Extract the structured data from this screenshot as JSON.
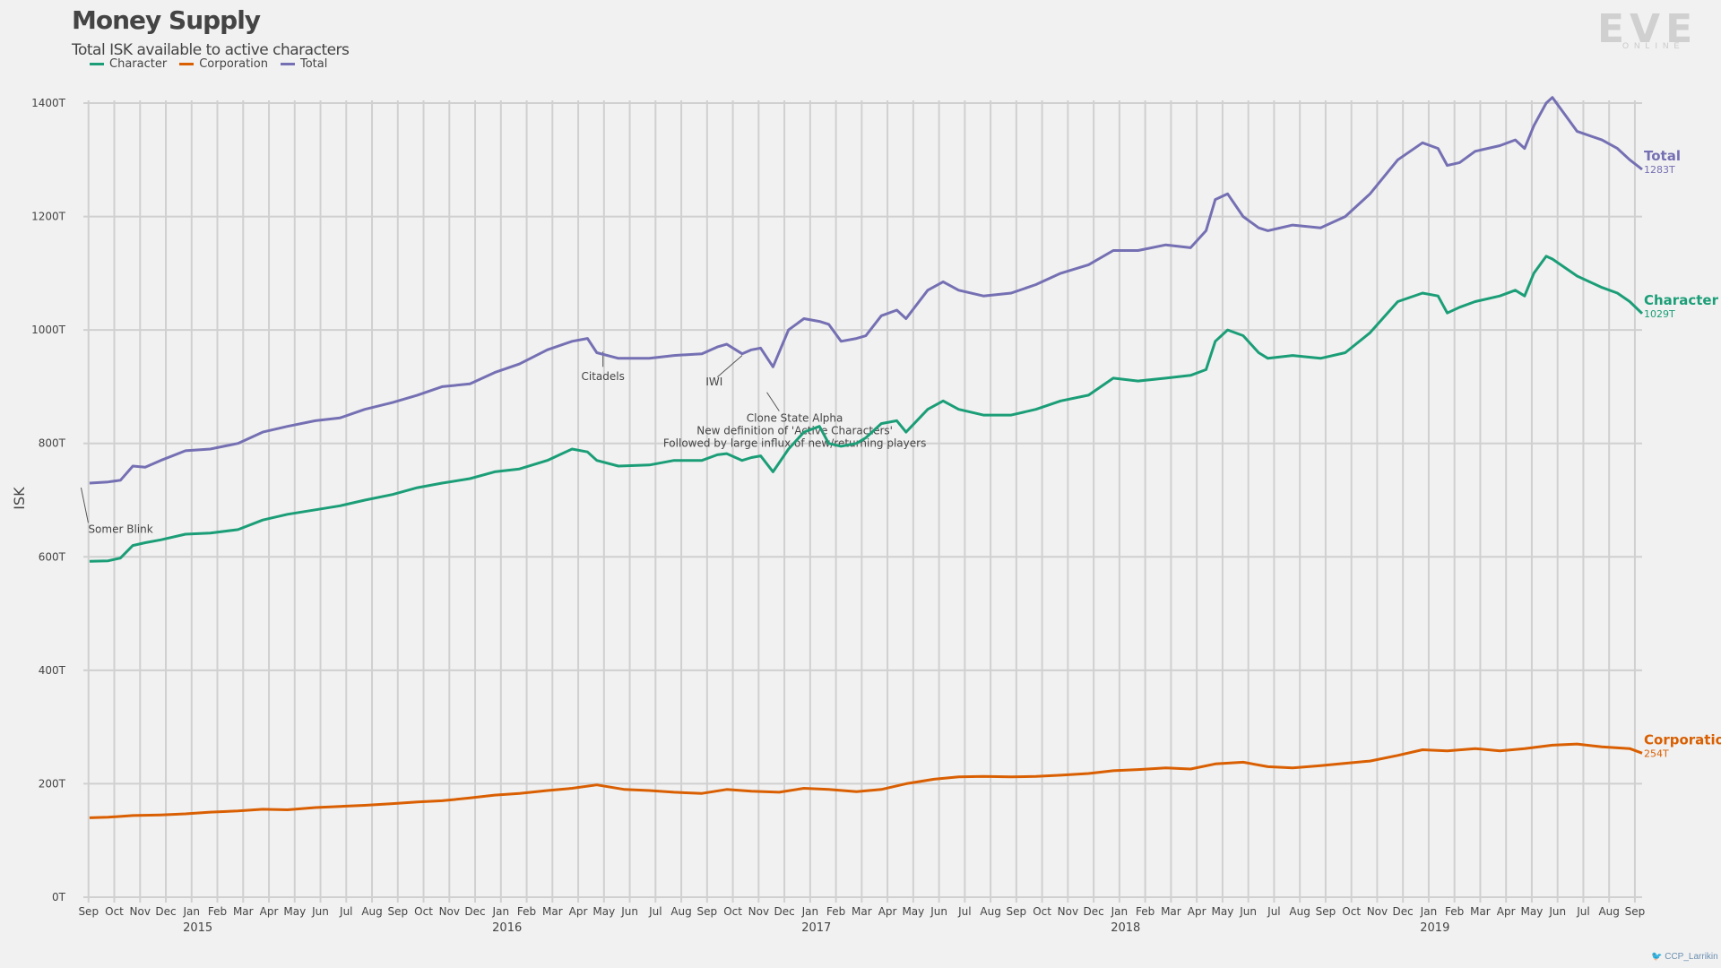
{
  "header": {
    "title": "Money Supply",
    "subtitle": "Total ISK available to active characters",
    "logo_text": "EVE",
    "logo_sub": "ONLINE",
    "credit": "CCP_Larrikin"
  },
  "colors": {
    "character": "#1b9e77",
    "corporation": "#d95f02",
    "total": "#7570b3"
  },
  "chart_data": {
    "type": "line",
    "ylabel": "ISK",
    "ylim": [
      0,
      1400
    ],
    "yticks": [
      "0T",
      "200T",
      "400T",
      "600T",
      "800T",
      "1000T",
      "1200T",
      "1400T"
    ],
    "xlim": [
      2014.67,
      2019.71
    ],
    "month_labels": [
      "Sep",
      "Oct",
      "Nov",
      "Dec",
      "Jan",
      "Feb",
      "Mar",
      "Apr",
      "May",
      "Jun",
      "Jul",
      "Aug",
      "Sep",
      "Oct",
      "Nov",
      "Dec",
      "Jan",
      "Feb",
      "Mar",
      "Apr",
      "May",
      "Jun",
      "Jul",
      "Aug",
      "Sep",
      "Oct",
      "Nov",
      "Dec",
      "Jan",
      "Feb",
      "Mar",
      "Apr",
      "May",
      "Jun",
      "Jul",
      "Aug",
      "Sep",
      "Oct",
      "Nov",
      "Dec",
      "Jan",
      "Feb",
      "Mar",
      "Apr",
      "May",
      "Jun",
      "Jul",
      "Aug",
      "Sep",
      "Oct",
      "Nov",
      "Dec",
      "Jan",
      "Feb",
      "Mar",
      "Apr",
      "May",
      "Jun",
      "Jul",
      "Aug",
      "Sep"
    ],
    "year_labels": [
      {
        "label": "2015",
        "x": 2015.0
      },
      {
        "label": "2016",
        "x": 2016.0
      },
      {
        "label": "2017",
        "x": 2017.0
      },
      {
        "label": "2018",
        "x": 2018.0
      },
      {
        "label": "2019",
        "x": 2019.0
      }
    ],
    "legend": [
      "Character",
      "Corporation",
      "Total"
    ],
    "series": [
      {
        "name": "Total",
        "color": "#7570b3",
        "end_label": "Total",
        "end_value": "1283T",
        "x": [
          2014.69,
          2014.75,
          2014.79,
          2014.83,
          2014.87,
          2014.92,
          2015.0,
          2015.08,
          2015.17,
          2015.25,
          2015.33,
          2015.42,
          2015.5,
          2015.58,
          2015.67,
          2015.75,
          2015.83,
          2015.92,
          2016.0,
          2016.08,
          2016.17,
          2016.25,
          2016.3,
          2016.33,
          2016.4,
          2016.5,
          2016.58,
          2016.67,
          2016.72,
          2016.75,
          2016.8,
          2016.83,
          2016.86,
          2016.9,
          2016.95,
          2017.0,
          2017.05,
          2017.08,
          2017.12,
          2017.17,
          2017.2,
          2017.25,
          2017.3,
          2017.33,
          2017.4,
          2017.45,
          2017.5,
          2017.58,
          2017.67,
          2017.75,
          2017.83,
          2017.92,
          2018.0,
          2018.08,
          2018.17,
          2018.25,
          2018.3,
          2018.33,
          2018.37,
          2018.42,
          2018.47,
          2018.5,
          2018.58,
          2018.67,
          2018.75,
          2018.83,
          2018.92,
          2019.0,
          2019.05,
          2019.08,
          2019.12,
          2019.17,
          2019.25,
          2019.3,
          2019.33,
          2019.36,
          2019.4,
          2019.42,
          2019.5,
          2019.58,
          2019.63,
          2019.67,
          2019.71
        ],
        "y": [
          730,
          732,
          735,
          760,
          758,
          770,
          787,
          790,
          800,
          820,
          830,
          840,
          845,
          860,
          872,
          885,
          900,
          905,
          925,
          940,
          965,
          980,
          985,
          960,
          950,
          950,
          955,
          958,
          970,
          975,
          958,
          965,
          968,
          935,
          1000,
          1020,
          1015,
          1010,
          980,
          985,
          990,
          1025,
          1035,
          1020,
          1070,
          1085,
          1070,
          1060,
          1065,
          1080,
          1100,
          1115,
          1140,
          1140,
          1150,
          1145,
          1175,
          1230,
          1240,
          1200,
          1180,
          1175,
          1185,
          1180,
          1200,
          1240,
          1300,
          1330,
          1320,
          1290,
          1295,
          1315,
          1325,
          1335,
          1320,
          1360,
          1400,
          1410,
          1350,
          1335,
          1320,
          1300,
          1283
        ]
      },
      {
        "name": "Character",
        "color": "#1b9e77",
        "end_label": "Character",
        "end_value": "1029T",
        "x": [
          2014.69,
          2014.75,
          2014.79,
          2014.83,
          2014.87,
          2014.92,
          2015.0,
          2015.08,
          2015.17,
          2015.25,
          2015.33,
          2015.42,
          2015.5,
          2015.58,
          2015.67,
          2015.75,
          2015.83,
          2015.92,
          2016.0,
          2016.08,
          2016.17,
          2016.25,
          2016.3,
          2016.33,
          2016.4,
          2016.5,
          2016.58,
          2016.67,
          2016.72,
          2016.75,
          2016.8,
          2016.83,
          2016.86,
          2016.9,
          2016.95,
          2017.0,
          2017.05,
          2017.08,
          2017.12,
          2017.17,
          2017.2,
          2017.25,
          2017.3,
          2017.33,
          2017.4,
          2017.45,
          2017.5,
          2017.58,
          2017.67,
          2017.75,
          2017.83,
          2017.92,
          2018.0,
          2018.08,
          2018.17,
          2018.25,
          2018.3,
          2018.33,
          2018.37,
          2018.42,
          2018.47,
          2018.5,
          2018.58,
          2018.67,
          2018.75,
          2018.83,
          2018.92,
          2019.0,
          2019.05,
          2019.08,
          2019.12,
          2019.17,
          2019.25,
          2019.3,
          2019.33,
          2019.36,
          2019.4,
          2019.42,
          2019.5,
          2019.58,
          2019.63,
          2019.67,
          2019.71
        ],
        "y": [
          592,
          593,
          598,
          620,
          625,
          630,
          640,
          642,
          648,
          665,
          675,
          683,
          690,
          700,
          710,
          722,
          730,
          738,
          750,
          755,
          770,
          790,
          785,
          770,
          760,
          762,
          770,
          770,
          780,
          782,
          770,
          775,
          778,
          750,
          790,
          820,
          830,
          800,
          795,
          800,
          810,
          835,
          840,
          820,
          860,
          875,
          860,
          850,
          850,
          860,
          875,
          885,
          915,
          910,
          915,
          920,
          930,
          980,
          1000,
          990,
          960,
          950,
          955,
          950,
          960,
          995,
          1050,
          1065,
          1060,
          1030,
          1040,
          1050,
          1060,
          1070,
          1060,
          1100,
          1130,
          1125,
          1095,
          1075,
          1065,
          1050,
          1029
        ]
      },
      {
        "name": "Corporation",
        "color": "#d95f02",
        "end_label": "Corporation",
        "end_value": "254T",
        "x": [
          2014.69,
          2014.75,
          2014.83,
          2014.92,
          2015.0,
          2015.08,
          2015.17,
          2015.25,
          2015.33,
          2015.42,
          2015.5,
          2015.58,
          2015.67,
          2015.75,
          2015.83,
          2015.92,
          2016.0,
          2016.08,
          2016.17,
          2016.25,
          2016.33,
          2016.42,
          2016.5,
          2016.58,
          2016.67,
          2016.75,
          2016.83,
          2016.92,
          2017.0,
          2017.08,
          2017.17,
          2017.25,
          2017.33,
          2017.42,
          2017.5,
          2017.58,
          2017.67,
          2017.75,
          2017.83,
          2017.92,
          2018.0,
          2018.08,
          2018.17,
          2018.25,
          2018.33,
          2018.42,
          2018.5,
          2018.58,
          2018.67,
          2018.75,
          2018.83,
          2018.92,
          2019.0,
          2019.08,
          2019.17,
          2019.25,
          2019.33,
          2019.42,
          2019.5,
          2019.58,
          2019.67,
          2019.71
        ],
        "y": [
          140,
          141,
          144,
          145,
          147,
          150,
          152,
          155,
          154,
          158,
          160,
          162,
          165,
          168,
          170,
          175,
          180,
          183,
          188,
          192,
          198,
          190,
          188,
          185,
          183,
          190,
          187,
          185,
          192,
          190,
          186,
          190,
          200,
          208,
          212,
          213,
          212,
          213,
          215,
          218,
          223,
          225,
          228,
          226,
          235,
          238,
          230,
          228,
          232,
          236,
          240,
          250,
          260,
          258,
          262,
          258,
          262,
          268,
          270,
          265,
          262,
          254
        ]
      }
    ],
    "annotations": [
      {
        "text": "Somer Blink",
        "x": 2014.68,
        "y": 722
      },
      {
        "text": "Citadels",
        "x": 2016.35,
        "y": 962
      },
      {
        "text": "IWI",
        "x": 2016.8,
        "y": 955
      },
      {
        "text": "Clone State Alpha",
        "x": 2016.88,
        "y": 885
      },
      {
        "text": "New definition of 'Active Characters'",
        "x": 2016.88,
        "y": 885
      },
      {
        "text": "Followed by large influx of new/returning players",
        "x": 2016.88,
        "y": 885
      }
    ]
  }
}
